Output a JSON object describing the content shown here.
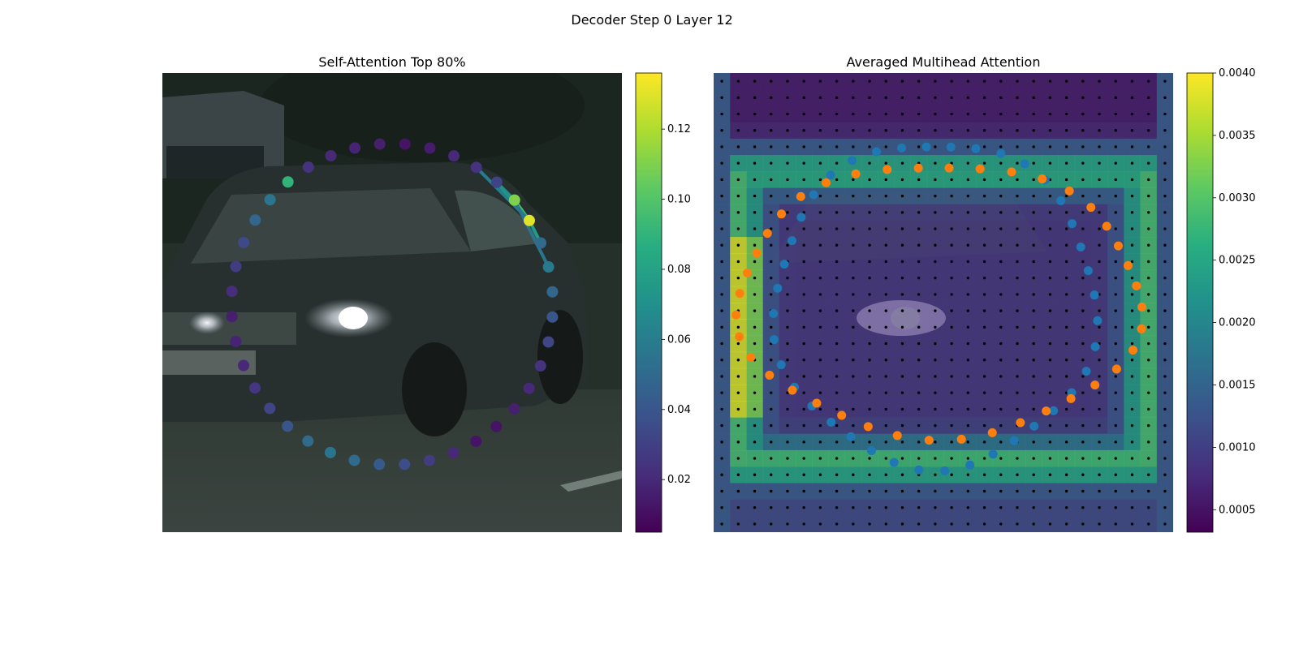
{
  "figure": {
    "suptitle": "Decoder Step 0 Layer 12"
  },
  "chart_data": [
    {
      "type": "scatter",
      "title": "Self-Attention Top 80%",
      "background": "photo: dark car on street, headlight on",
      "colormap": "viridis",
      "colorbar": {
        "min": 0.005,
        "max": 0.136,
        "ticks": [
          0.02,
          0.04,
          0.06,
          0.08,
          0.1,
          0.12
        ],
        "tick_labels": [
          "0.02",
          "0.04",
          "0.06",
          "0.08",
          "0.10",
          "0.12"
        ]
      },
      "points": {
        "count": 40,
        "layout": "ring",
        "values": [
          0.012,
          0.015,
          0.02,
          0.024,
          0.031,
          0.11,
          0.13,
          0.05,
          0.058,
          0.048,
          0.04,
          0.032,
          0.024,
          0.02,
          0.016,
          0.012,
          0.012,
          0.02,
          0.028,
          0.036,
          0.042,
          0.05,
          0.055,
          0.05,
          0.04,
          0.032,
          0.026,
          0.02,
          0.018,
          0.016,
          0.022,
          0.028,
          0.034,
          0.048,
          0.056,
          0.09,
          0.024,
          0.02,
          0.018,
          0.016
        ]
      },
      "top_edges": [
        {
          "from": 6,
          "to": 5,
          "value": 0.1
        },
        {
          "from": 6,
          "to": 4,
          "value": 0.08
        },
        {
          "from": 6,
          "to": 7,
          "value": 0.075
        },
        {
          "from": 5,
          "to": 4,
          "value": 0.07
        },
        {
          "from": 6,
          "to": 3,
          "value": 0.06
        },
        {
          "from": 5,
          "to": 8,
          "value": 0.055
        }
      ]
    },
    {
      "type": "heatmap",
      "title": "Averaged Multihead Attention",
      "background": "photo: dark car on street, dimmed",
      "colormap": "viridis",
      "grid": {
        "rows": 28,
        "cols": 28
      },
      "colorbar": {
        "min": 0.00032,
        "max": 0.004,
        "ticks": [
          0.0005,
          0.001,
          0.0015,
          0.002,
          0.0025,
          0.003,
          0.0035,
          0.004
        ],
        "tick_labels": [
          "0.0005",
          "0.0010",
          "0.0015",
          "0.0020",
          "0.0025",
          "0.0030",
          "0.0035",
          "0.0040"
        ]
      },
      "series": [
        {
          "color": "#1f77b4",
          "count": 40,
          "layout": "ring"
        },
        {
          "color": "#ff7f0e",
          "count": 40,
          "layout": "ring"
        }
      ],
      "reference_points_color": "#000000"
    }
  ]
}
